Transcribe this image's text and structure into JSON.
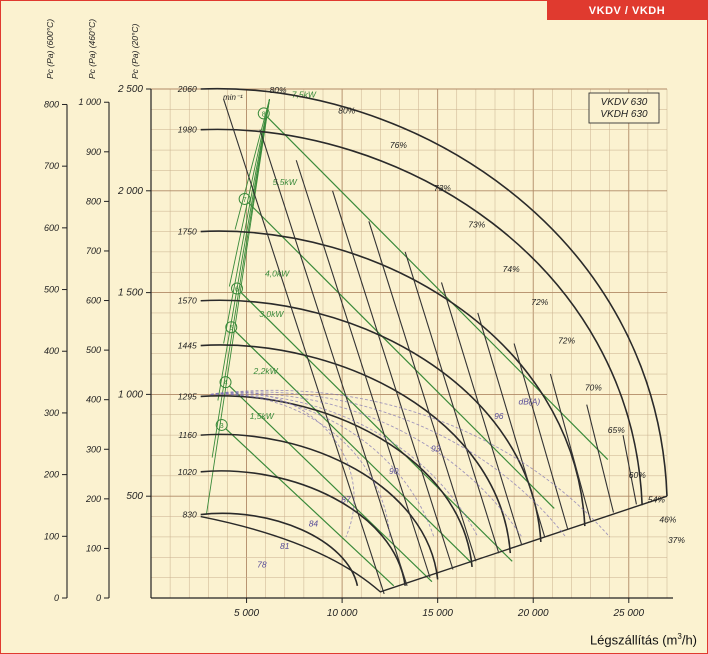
{
  "header_tag": "VKDV / VKDH",
  "caption": {
    "prefix": "Légszállítás  (m",
    "sup": "3",
    "suffix": "/h)"
  },
  "chart_data": {
    "type": "line",
    "model_labels": [
      "VKDV 630",
      "VKDH 630"
    ],
    "x_axis": {
      "range": [
        0,
        27000
      ],
      "ticks": [
        5000,
        10000,
        15000,
        20000,
        25000
      ],
      "tick_labels": [
        "5 000",
        "10 000",
        "15 000",
        "20 000",
        "25 000"
      ]
    },
    "y_axes": [
      {
        "label": "Pc (Pa) (20°C)",
        "range": [
          0,
          2500
        ],
        "ticks": [
          500,
          1000,
          1500,
          2000,
          2500
        ],
        "tick_labels": [
          "500",
          "1 000",
          "1 500",
          "2 000",
          "2 500"
        ]
      },
      {
        "label": "Pc (Pa) (460°C)",
        "ticks": [
          0,
          100,
          200,
          300,
          400,
          500,
          600,
          700,
          800,
          900,
          1000
        ],
        "tick_labels": [
          "0",
          "100",
          "200",
          "300",
          "400",
          "500",
          "600",
          "700",
          "800",
          "900",
          "1 000"
        ]
      },
      {
        "label": "Pc (Pa) (600°C)",
        "ticks": [
          0,
          100,
          200,
          300,
          400,
          500,
          600,
          700,
          800
        ],
        "tick_labels": [
          "0",
          "100",
          "200",
          "300",
          "400",
          "500",
          "600",
          "700",
          "800"
        ]
      }
    ],
    "speed_unit": "min⁻¹",
    "speed_curves": [
      {
        "rpm": "2060",
        "shutoff_pressure": 2500,
        "max_flow": 27000
      },
      {
        "rpm": "1980",
        "shutoff_pressure": 2300,
        "max_flow": 25700
      },
      {
        "rpm": "1750",
        "shutoff_pressure": 1800,
        "max_flow": 22700
      },
      {
        "rpm": "1570",
        "shutoff_pressure": 1460,
        "max_flow": 20400
      },
      {
        "rpm": "1445",
        "shutoff_pressure": 1240,
        "max_flow": 18800
      },
      {
        "rpm": "1295",
        "shutoff_pressure": 990,
        "max_flow": 16800
      },
      {
        "rpm": "1160",
        "shutoff_pressure": 800,
        "max_flow": 15000
      },
      {
        "rpm": "1020",
        "shutoff_pressure": 620,
        "max_flow": 13300
      },
      {
        "rpm": "830",
        "shutoff_pressure": 410,
        "max_flow": 10800
      }
    ],
    "power_lines": [
      {
        "label": "7,5kW",
        "marker": "8"
      },
      {
        "label": "5,5kW",
        "marker": "7"
      },
      {
        "label": "4,0kW",
        "marker": "6"
      },
      {
        "label": "3,0kW",
        "marker": "5"
      },
      {
        "label": "2,2kW",
        "marker": "4"
      },
      {
        "label": "1,5kW",
        "marker": "3"
      }
    ],
    "efficiency_labels": [
      "80%",
      "80%",
      "76%",
      "73%",
      "73%",
      "74%",
      "72%",
      "72%",
      "70%",
      "65%",
      "60%",
      "54%",
      "46%",
      "37%"
    ],
    "noise_labels": [
      "dB(A)",
      "96",
      "93",
      "90",
      "87",
      "84",
      "81",
      "78"
    ]
  }
}
